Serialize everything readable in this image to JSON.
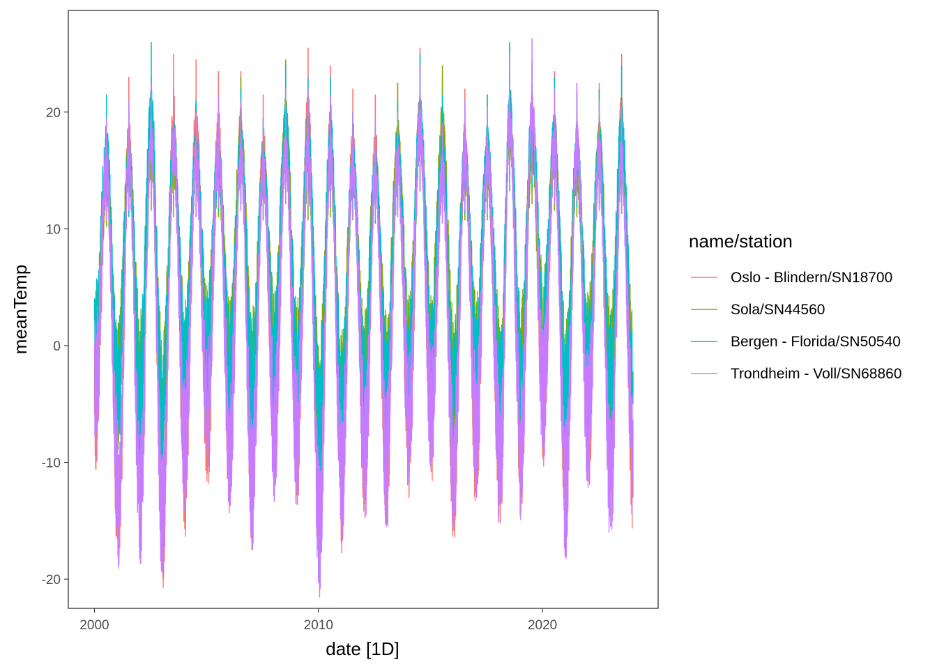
{
  "chart_data": {
    "type": "line",
    "title": "",
    "xlabel": "date [1D]",
    "ylabel": "meanTemp",
    "xlim": [
      "1998-11-01",
      "2025-03-01"
    ],
    "ylim": [
      -22.5,
      28.7
    ],
    "x_ticks": [
      {
        "value": "2000-01-01",
        "label": "2000"
      },
      {
        "value": "2010-01-01",
        "label": "2010"
      },
      {
        "value": "2020-01-01",
        "label": "2020"
      }
    ],
    "y_ticks": [
      {
        "value": -20,
        "label": "-20"
      },
      {
        "value": -10,
        "label": "-10"
      },
      {
        "value": 0,
        "label": "0"
      },
      {
        "value": 10,
        "label": "10"
      },
      {
        "value": 20,
        "label": "20"
      }
    ],
    "grid": false,
    "legend": {
      "title": "name/station",
      "position": "right"
    },
    "series": [
      {
        "name": "Oslo - Blindern/SN18700",
        "color": "#F8766D",
        "peaks": [
          {
            "date": "2000-07-15",
            "value": 19.0
          },
          {
            "date": "2001-07-15",
            "value": 23.0
          },
          {
            "date": "2002-07-15",
            "value": 23.0
          },
          {
            "date": "2003-07-15",
            "value": 25.0
          },
          {
            "date": "2004-07-15",
            "value": 24.5
          },
          {
            "date": "2005-07-15",
            "value": 23.5
          },
          {
            "date": "2006-07-15",
            "value": 23.5
          },
          {
            "date": "2007-07-15",
            "value": 21.5
          },
          {
            "date": "2008-07-15",
            "value": 24.0
          },
          {
            "date": "2009-07-15",
            "value": 25.5
          },
          {
            "date": "2010-07-15",
            "value": 24.0
          },
          {
            "date": "2011-07-15",
            "value": 22.0
          },
          {
            "date": "2012-07-15",
            "value": 21.5
          },
          {
            "date": "2013-07-15",
            "value": 22.5
          },
          {
            "date": "2014-07-15",
            "value": 25.5
          },
          {
            "date": "2015-07-15",
            "value": 23.0
          },
          {
            "date": "2016-07-15",
            "value": 22.0
          },
          {
            "date": "2017-07-15",
            "value": 21.5
          },
          {
            "date": "2018-07-15",
            "value": 25.5
          },
          {
            "date": "2019-07-15",
            "value": 24.0
          },
          {
            "date": "2020-07-15",
            "value": 23.5
          },
          {
            "date": "2021-07-15",
            "value": 22.0
          },
          {
            "date": "2022-07-15",
            "value": 22.5
          },
          {
            "date": "2023-07-15",
            "value": 25.0
          }
        ],
        "troughs": [
          {
            "date": "2000-01-15",
            "value": -8.0
          },
          {
            "date": "2001-02-01",
            "value": -18.0
          },
          {
            "date": "2002-01-15",
            "value": -12.0
          },
          {
            "date": "2003-01-15",
            "value": -19.0
          },
          {
            "date": "2004-01-15",
            "value": -13.5
          },
          {
            "date": "2005-01-15",
            "value": -9.0
          },
          {
            "date": "2006-01-15",
            "value": -11.5
          },
          {
            "date": "2007-01-15",
            "value": -15.0
          },
          {
            "date": "2008-01-15",
            "value": -9.0
          },
          {
            "date": "2009-01-15",
            "value": -11.0
          },
          {
            "date": "2010-01-15",
            "value": -20.0
          },
          {
            "date": "2011-01-15",
            "value": -15.0
          },
          {
            "date": "2012-02-01",
            "value": -13.0
          },
          {
            "date": "2013-01-15",
            "value": -13.5
          },
          {
            "date": "2014-01-15",
            "value": -9.0
          },
          {
            "date": "2015-01-15",
            "value": -8.5
          },
          {
            "date": "2016-01-15",
            "value": -14.5
          },
          {
            "date": "2017-01-15",
            "value": -10.5
          },
          {
            "date": "2018-02-15",
            "value": -13.5
          },
          {
            "date": "2019-01-15",
            "value": -11.0
          },
          {
            "date": "2020-01-15",
            "value": -5.0
          },
          {
            "date": "2021-01-15",
            "value": -14.0
          },
          {
            "date": "2022-01-15",
            "value": -9.0
          },
          {
            "date": "2023-01-15",
            "value": -10.0
          },
          {
            "date": "2024-01-15",
            "value": -13.0
          }
        ]
      },
      {
        "name": "Sola/SN44560",
        "color": "#7CAE00",
        "peaks": [
          {
            "date": "2000-07-15",
            "value": 18.5
          },
          {
            "date": "2001-07-15",
            "value": 20.5
          },
          {
            "date": "2002-07-15",
            "value": 21.0
          },
          {
            "date": "2003-07-15",
            "value": 20.0
          },
          {
            "date": "2004-07-15",
            "value": 20.0
          },
          {
            "date": "2005-07-15",
            "value": 20.0
          },
          {
            "date": "2006-07-15",
            "value": 23.0
          },
          {
            "date": "2007-07-15",
            "value": 19.5
          },
          {
            "date": "2008-07-15",
            "value": 24.5
          },
          {
            "date": "2009-07-15",
            "value": 19.5
          },
          {
            "date": "2010-07-15",
            "value": 20.0
          },
          {
            "date": "2011-07-15",
            "value": 19.5
          },
          {
            "date": "2012-07-15",
            "value": 19.0
          },
          {
            "date": "2013-07-15",
            "value": 22.5
          },
          {
            "date": "2014-07-15",
            "value": 24.0
          },
          {
            "date": "2015-07-15",
            "value": 24.0
          },
          {
            "date": "2016-07-15",
            "value": 19.5
          },
          {
            "date": "2017-07-15",
            "value": 19.5
          },
          {
            "date": "2018-07-15",
            "value": 24.0
          },
          {
            "date": "2019-07-15",
            "value": 22.0
          },
          {
            "date": "2020-07-15",
            "value": 21.0
          },
          {
            "date": "2021-07-15",
            "value": 20.0
          },
          {
            "date": "2022-07-15",
            "value": 22.0
          },
          {
            "date": "2023-07-15",
            "value": 20.5
          }
        ],
        "troughs": [
          {
            "date": "2000-01-15",
            "value": -2.0
          },
          {
            "date": "2001-01-15",
            "value": -5.0
          },
          {
            "date": "2002-01-15",
            "value": -4.0
          },
          {
            "date": "2003-01-15",
            "value": -6.5
          },
          {
            "date": "2004-01-15",
            "value": -3.0
          },
          {
            "date": "2005-01-15",
            "value": -1.0
          },
          {
            "date": "2006-01-15",
            "value": -3.0
          },
          {
            "date": "2007-01-15",
            "value": -3.5
          },
          {
            "date": "2008-01-15",
            "value": -1.5
          },
          {
            "date": "2009-01-15",
            "value": -3.0
          },
          {
            "date": "2010-01-15",
            "value": -7.0
          },
          {
            "date": "2011-01-15",
            "value": -6.0
          },
          {
            "date": "2012-01-15",
            "value": -4.0
          },
          {
            "date": "2013-01-15",
            "value": -4.0
          },
          {
            "date": "2014-01-15",
            "value": -2.0
          },
          {
            "date": "2015-01-15",
            "value": -1.5
          },
          {
            "date": "2016-01-15",
            "value": -4.5
          },
          {
            "date": "2017-01-15",
            "value": -2.0
          },
          {
            "date": "2018-02-15",
            "value": -4.5
          },
          {
            "date": "2019-01-15",
            "value": -3.0
          },
          {
            "date": "2020-01-15",
            "value": 1.0
          },
          {
            "date": "2021-01-15",
            "value": -4.5
          },
          {
            "date": "2022-01-15",
            "value": -2.0
          },
          {
            "date": "2023-01-15",
            "value": -3.0
          },
          {
            "date": "2024-01-15",
            "value": -4.0
          }
        ]
      },
      {
        "name": "Bergen - Florida/SN50540",
        "color": "#00BFC4",
        "peaks": [
          {
            "date": "2000-07-15",
            "value": 21.5
          },
          {
            "date": "2001-07-15",
            "value": 20.0
          },
          {
            "date": "2002-07-15",
            "value": 26.0
          },
          {
            "date": "2003-07-15",
            "value": 22.0
          },
          {
            "date": "2004-07-15",
            "value": 21.0
          },
          {
            "date": "2005-07-15",
            "value": 21.0
          },
          {
            "date": "2006-07-15",
            "value": 22.0
          },
          {
            "date": "2007-07-15",
            "value": 19.5
          },
          {
            "date": "2008-07-15",
            "value": 24.0
          },
          {
            "date": "2009-07-15",
            "value": 23.0
          },
          {
            "date": "2010-07-15",
            "value": 23.0
          },
          {
            "date": "2011-07-15",
            "value": 20.0
          },
          {
            "date": "2012-07-15",
            "value": 19.0
          },
          {
            "date": "2013-07-15",
            "value": 21.0
          },
          {
            "date": "2014-07-15",
            "value": 25.0
          },
          {
            "date": "2015-07-15",
            "value": 21.5
          },
          {
            "date": "2016-07-15",
            "value": 20.5
          },
          {
            "date": "2017-07-15",
            "value": 21.5
          },
          {
            "date": "2018-07-15",
            "value": 26.0
          },
          {
            "date": "2019-07-15",
            "value": 24.5
          },
          {
            "date": "2020-07-15",
            "value": 23.0
          },
          {
            "date": "2021-07-15",
            "value": 21.5
          },
          {
            "date": "2022-07-15",
            "value": 22.0
          },
          {
            "date": "2023-07-15",
            "value": 24.0
          }
        ],
        "troughs": [
          {
            "date": "2000-01-15",
            "value": -1.0
          },
          {
            "date": "2001-01-15",
            "value": -6.0
          },
          {
            "date": "2002-01-15",
            "value": -5.0
          },
          {
            "date": "2003-01-15",
            "value": -8.0
          },
          {
            "date": "2004-01-15",
            "value": -4.0
          },
          {
            "date": "2005-01-15",
            "value": -2.0
          },
          {
            "date": "2006-01-15",
            "value": -4.0
          },
          {
            "date": "2007-01-15",
            "value": -5.0
          },
          {
            "date": "2008-01-15",
            "value": -2.0
          },
          {
            "date": "2009-01-15",
            "value": -4.0
          },
          {
            "date": "2010-01-15",
            "value": -9.0
          },
          {
            "date": "2011-01-15",
            "value": -8.0
          },
          {
            "date": "2012-01-15",
            "value": -5.0
          },
          {
            "date": "2013-01-15",
            "value": -5.0
          },
          {
            "date": "2014-01-15",
            "value": -3.0
          },
          {
            "date": "2015-01-15",
            "value": -2.0
          },
          {
            "date": "2016-01-15",
            "value": -6.0
          },
          {
            "date": "2017-01-15",
            "value": -3.0
          },
          {
            "date": "2018-02-15",
            "value": -6.0
          },
          {
            "date": "2019-01-15",
            "value": -4.0
          },
          {
            "date": "2020-01-15",
            "value": 0.0
          },
          {
            "date": "2021-01-15",
            "value": -6.0
          },
          {
            "date": "2022-01-15",
            "value": -3.0
          },
          {
            "date": "2023-01-15",
            "value": -4.0
          },
          {
            "date": "2024-01-15",
            "value": -5.0
          }
        ]
      },
      {
        "name": "Trondheim - Voll/SN68860",
        "color": "#C77CFF",
        "peaks": [
          {
            "date": "2000-07-15",
            "value": 19.5
          },
          {
            "date": "2001-07-15",
            "value": 21.0
          },
          {
            "date": "2002-07-15",
            "value": 22.5
          },
          {
            "date": "2003-07-15",
            "value": 22.0
          },
          {
            "date": "2004-07-15",
            "value": 20.0
          },
          {
            "date": "2005-07-15",
            "value": 21.5
          },
          {
            "date": "2006-07-15",
            "value": 21.0
          },
          {
            "date": "2007-07-15",
            "value": 19.5
          },
          {
            "date": "2008-07-15",
            "value": 22.0
          },
          {
            "date": "2009-07-15",
            "value": 22.0
          },
          {
            "date": "2010-07-15",
            "value": 21.5
          },
          {
            "date": "2011-07-15",
            "value": 20.0
          },
          {
            "date": "2012-07-15",
            "value": 19.5
          },
          {
            "date": "2013-07-15",
            "value": 20.0
          },
          {
            "date": "2014-07-15",
            "value": 24.0
          },
          {
            "date": "2015-07-15",
            "value": 19.0
          },
          {
            "date": "2016-07-15",
            "value": 21.0
          },
          {
            "date": "2017-07-15",
            "value": 20.5
          },
          {
            "date": "2018-07-15",
            "value": 25.0
          },
          {
            "date": "2019-07-15",
            "value": 26.3
          },
          {
            "date": "2020-07-15",
            "value": 22.0
          },
          {
            "date": "2021-07-15",
            "value": 22.5
          },
          {
            "date": "2022-07-15",
            "value": 21.0
          },
          {
            "date": "2023-07-15",
            "value": 20.5
          }
        ],
        "troughs": [
          {
            "date": "2000-01-15",
            "value": -5.0
          },
          {
            "date": "2001-02-01",
            "value": -17.0
          },
          {
            "date": "2002-01-15",
            "value": -17.0
          },
          {
            "date": "2003-01-15",
            "value": -19.5
          },
          {
            "date": "2004-01-15",
            "value": -11.0
          },
          {
            "date": "2005-01-15",
            "value": -7.0
          },
          {
            "date": "2006-01-15",
            "value": -11.0
          },
          {
            "date": "2007-01-15",
            "value": -15.0
          },
          {
            "date": "2008-01-15",
            "value": -9.5
          },
          {
            "date": "2009-01-15",
            "value": -10.5
          },
          {
            "date": "2010-01-15",
            "value": -20.4
          },
          {
            "date": "2011-01-15",
            "value": -14.5
          },
          {
            "date": "2012-02-01",
            "value": -12.0
          },
          {
            "date": "2013-01-15",
            "value": -13.0
          },
          {
            "date": "2014-01-15",
            "value": -8.0
          },
          {
            "date": "2015-01-15",
            "value": -8.0
          },
          {
            "date": "2016-01-15",
            "value": -14.0
          },
          {
            "date": "2017-01-15",
            "value": -10.0
          },
          {
            "date": "2018-02-15",
            "value": -13.0
          },
          {
            "date": "2019-01-15",
            "value": -11.5
          },
          {
            "date": "2020-01-15",
            "value": -6.0
          },
          {
            "date": "2021-01-15",
            "value": -16.0
          },
          {
            "date": "2022-01-15",
            "value": -9.0
          },
          {
            "date": "2023-01-15",
            "value": -15.5
          },
          {
            "date": "2024-01-15",
            "value": -11.5
          }
        ]
      }
    ]
  }
}
